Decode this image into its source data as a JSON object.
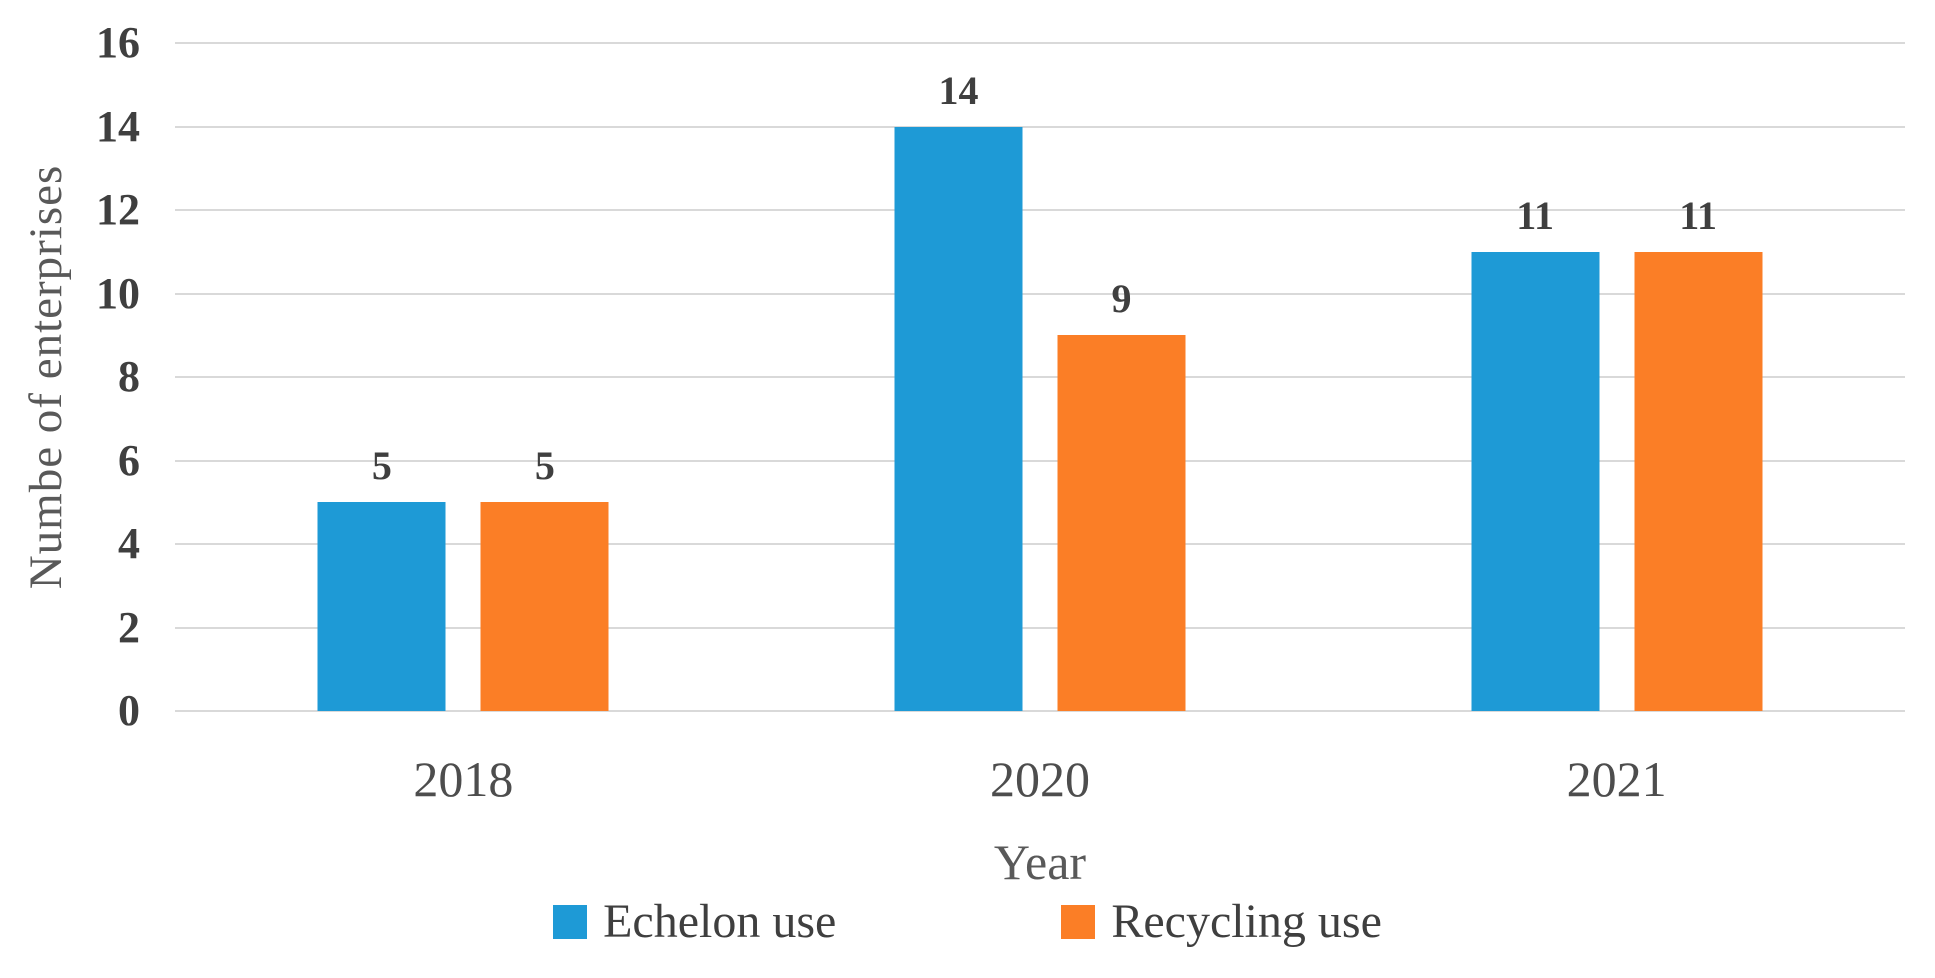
{
  "chart_data": {
    "type": "bar",
    "title": "",
    "categories": [
      "2018",
      "2020",
      "2021"
    ],
    "series": [
      {
        "name": "Echelon use",
        "color": "#1E9AD6",
        "values": [
          5,
          14,
          11
        ]
      },
      {
        "name": "Recycling use",
        "color": "#FB7E26",
        "values": [
          5,
          9,
          11
        ]
      }
    ],
    "data_labels": true,
    "xlabel": "Year",
    "ylabel": "Numbe of enterprises",
    "ylim": [
      0,
      16
    ],
    "yticks": [
      0,
      2,
      4,
      6,
      8,
      10,
      12,
      14,
      16
    ],
    "grid": "horizontal",
    "legend_position": "bottom"
  },
  "colors": {
    "gridline": "#D9D9D9",
    "tick_text": "#3F3F3F",
    "axis_title_text": "#595959",
    "background": "#FFFFFF"
  }
}
